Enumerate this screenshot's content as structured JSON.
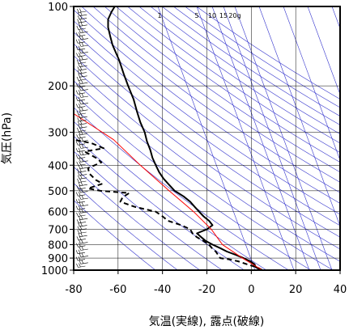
{
  "chart_data": {
    "type": "line",
    "title": "",
    "xlabel": "気温(実線), 露点(破線)",
    "ylabel": "気圧(hPa)",
    "xlim": [
      -80,
      40
    ],
    "ylim": [
      1000,
      100
    ],
    "y_scale": "log",
    "grid": true,
    "x_ticks": [
      "-80",
      "-60",
      "-40",
      "-20",
      "0",
      "20",
      "40"
    ],
    "y_ticks": [
      "100",
      "200",
      "300",
      "400",
      "500",
      "600",
      "700",
      "800",
      "900",
      "1000"
    ],
    "mixing_ratio_labels": [
      "1",
      "5",
      "10",
      "15",
      "20g"
    ],
    "colors": {
      "temperature": "#000000",
      "dewpoint": "#000000",
      "parcel": "#ff0000",
      "background_lines": "#3333cc",
      "grid": "#000000"
    },
    "series": [
      {
        "name": "気温",
        "style": "solid",
        "points": [
          [
            4.5,
            1000
          ],
          [
            2,
            975
          ],
          [
            1.5,
            950
          ],
          [
            -0.5,
            925
          ],
          [
            -3.5,
            900
          ],
          [
            -7,
            875
          ],
          [
            -11,
            850
          ],
          [
            -14,
            825
          ],
          [
            -17.5,
            800
          ],
          [
            -20.5,
            775
          ],
          [
            -22.5,
            750
          ],
          [
            -24.5,
            725
          ],
          [
            -20,
            700
          ],
          [
            -17.5,
            675
          ],
          [
            -19,
            650
          ],
          [
            -21.5,
            625
          ],
          [
            -23.5,
            600
          ],
          [
            -25.5,
            575
          ],
          [
            -27.5,
            550
          ],
          [
            -30.5,
            525
          ],
          [
            -34.5,
            500
          ],
          [
            -37,
            475
          ],
          [
            -39.5,
            450
          ],
          [
            -41.5,
            425
          ],
          [
            -43,
            400
          ],
          [
            -44.5,
            375
          ],
          [
            -45.5,
            350
          ],
          [
            -47,
            325
          ],
          [
            -48,
            300
          ],
          [
            -50,
            275
          ],
          [
            -51.5,
            250
          ],
          [
            -53,
            225
          ],
          [
            -55.5,
            200
          ],
          [
            -57.5,
            180
          ],
          [
            -59.5,
            160
          ],
          [
            -62.5,
            140
          ],
          [
            -63.5,
            130
          ],
          [
            -64.5,
            120
          ],
          [
            -64.5,
            112
          ],
          [
            -63,
            105
          ],
          [
            -61.5,
            100
          ]
        ]
      },
      {
        "name": "露点",
        "style": "dashed",
        "points": [
          [
            5,
            1000
          ],
          [
            2.5,
            975
          ],
          [
            -2,
            950
          ],
          [
            -6,
            925
          ],
          [
            -10,
            910
          ],
          [
            -14,
            900
          ],
          [
            -15,
            875
          ],
          [
            -16,
            850
          ],
          [
            -17.5,
            830
          ],
          [
            -19,
            800
          ],
          [
            -21.5,
            775
          ],
          [
            -24.5,
            750
          ],
          [
            -26.5,
            725
          ],
          [
            -27.5,
            700
          ],
          [
            -31.5,
            675
          ],
          [
            -37.5,
            650
          ],
          [
            -40,
            625
          ],
          [
            -43,
            600
          ],
          [
            -52.5,
            575
          ],
          [
            -59,
            550
          ],
          [
            -58,
            530
          ],
          [
            -55,
            510
          ],
          [
            -68,
            500
          ],
          [
            -73.5,
            490
          ],
          [
            -67,
            470
          ],
          [
            -70,
            455
          ],
          [
            -73,
            430
          ],
          [
            -73.5,
            410
          ],
          [
            -67.5,
            390
          ],
          [
            -70,
            375
          ],
          [
            -75,
            355
          ],
          [
            -66.5,
            345
          ],
          [
            -72,
            330
          ],
          [
            -80,
            320
          ]
        ]
      },
      {
        "name": "",
        "style": "solid-red",
        "points": [
          [
            5,
            1000
          ],
          [
            -4,
            900
          ],
          [
            -13,
            800
          ],
          [
            -18,
            700
          ],
          [
            -26,
            600
          ],
          [
            -37,
            500
          ],
          [
            -50,
            400
          ],
          [
            -62,
            320
          ],
          [
            -80,
            255
          ]
        ]
      }
    ]
  }
}
